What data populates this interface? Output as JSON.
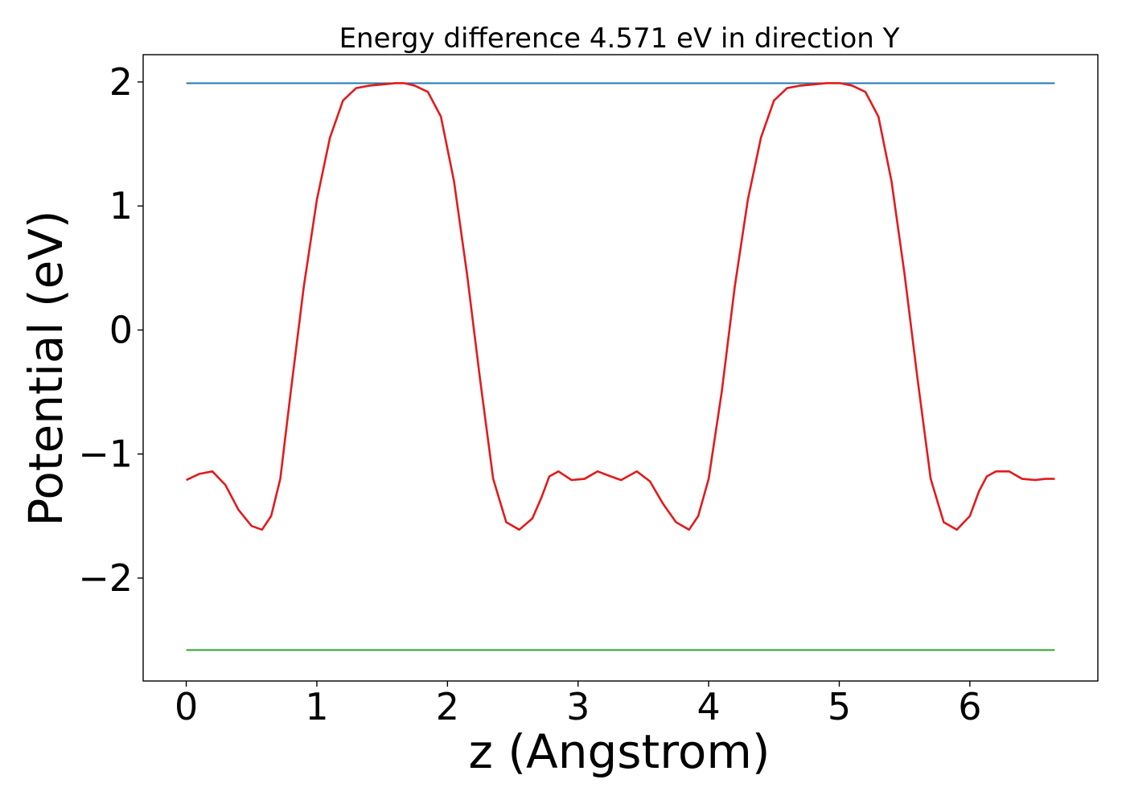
{
  "chart_data": {
    "type": "line",
    "title": "Energy difference 4.571 eV in direction Y",
    "xlabel": "z (Angstrom)",
    "ylabel": "Potential (eV)",
    "xlim": [
      -0.33,
      6.98
    ],
    "ylim": [
      -2.83,
      2.22
    ],
    "x_ticks": [
      0,
      1,
      2,
      3,
      4,
      5,
      6
    ],
    "x_tick_labels": [
      "0",
      "1",
      "2",
      "3",
      "4",
      "5",
      "6"
    ],
    "y_ticks": [
      2,
      1,
      0,
      -1,
      -2
    ],
    "y_tick_labels": [
      "2",
      "1",
      "0",
      "−1",
      "−2"
    ],
    "grid": false,
    "series": [
      {
        "color": "#1f77b4",
        "x": [
          0,
          6.65
        ],
        "y": [
          1.99,
          1.99
        ]
      },
      {
        "color": "#2ca02c",
        "x": [
          0,
          6.65
        ],
        "y": [
          -2.58,
          -2.58
        ]
      },
      {
        "color": "#e31a1c",
        "x": [
          0.0,
          0.1,
          0.2,
          0.3,
          0.4,
          0.5,
          0.58,
          0.65,
          0.72,
          0.8,
          0.9,
          1.0,
          1.1,
          1.2,
          1.3,
          1.4,
          1.5,
          1.6,
          1.67,
          1.75,
          1.85,
          1.95,
          2.05,
          2.15,
          2.25,
          2.35,
          2.45,
          2.55,
          2.65,
          2.72,
          2.78,
          2.85,
          2.95,
          3.05,
          3.15,
          3.25,
          3.33,
          3.45,
          3.55,
          3.65,
          3.75,
          3.85,
          3.92,
          4.0,
          4.1,
          4.2,
          4.3,
          4.4,
          4.5,
          4.6,
          4.7,
          4.8,
          4.9,
          5.01,
          5.1,
          5.2,
          5.3,
          5.4,
          5.5,
          5.6,
          5.7,
          5.8,
          5.9,
          6.0,
          6.07,
          6.13,
          6.2,
          6.3,
          6.4,
          6.5,
          6.58,
          6.65
        ],
        "y": [
          -1.21,
          -1.16,
          -1.14,
          -1.25,
          -1.45,
          -1.58,
          -1.61,
          -1.5,
          -1.2,
          -0.5,
          0.35,
          1.05,
          1.55,
          1.85,
          1.95,
          1.97,
          1.98,
          1.99,
          1.99,
          1.97,
          1.92,
          1.72,
          1.2,
          0.45,
          -0.4,
          -1.2,
          -1.55,
          -1.61,
          -1.52,
          -1.35,
          -1.18,
          -1.14,
          -1.21,
          -1.2,
          -1.14,
          -1.18,
          -1.21,
          -1.14,
          -1.22,
          -1.4,
          -1.55,
          -1.61,
          -1.5,
          -1.2,
          -0.5,
          0.35,
          1.05,
          1.55,
          1.85,
          1.95,
          1.97,
          1.98,
          1.99,
          1.99,
          1.97,
          1.92,
          1.72,
          1.2,
          0.45,
          -0.4,
          -1.2,
          -1.55,
          -1.61,
          -1.5,
          -1.3,
          -1.18,
          -1.14,
          -1.14,
          -1.2,
          -1.21,
          -1.2,
          -1.2
        ]
      }
    ]
  }
}
